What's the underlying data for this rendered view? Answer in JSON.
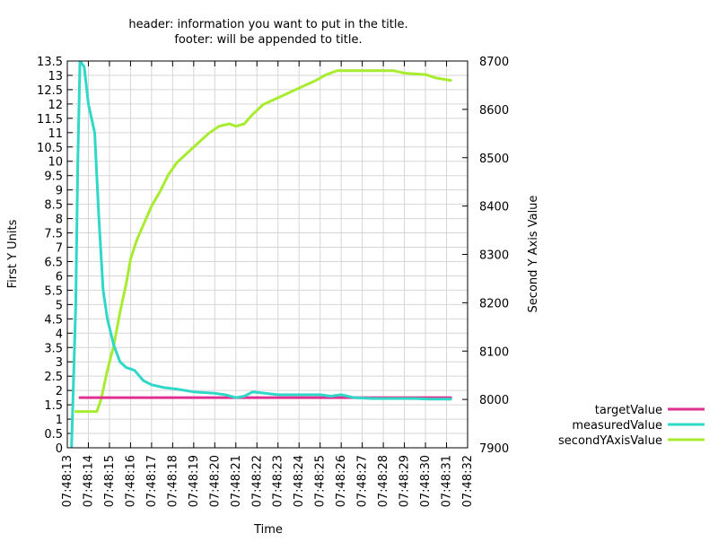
{
  "chart_data": {
    "type": "line",
    "title": "header: information you want to put in the title.",
    "subtitle": "footer: will be appended to title.",
    "xlabel": "Time",
    "ylabel": "First Y Units",
    "y2label": "Second Y Axis Value",
    "grid": true,
    "legend_position": "bottom-right, outside plot",
    "x_ticks": [
      "07:48:13",
      "07:48:14",
      "07:48:15",
      "07:48:16",
      "07:48:17",
      "07:48:18",
      "07:48:19",
      "07:48:20",
      "07:48:21",
      "07:48:22",
      "07:48:23",
      "07:48:24",
      "07:48:25",
      "07:48:26",
      "07:48:27",
      "07:48:28",
      "07:48:29",
      "07:48:30",
      "07:48:31",
      "07:48:32"
    ],
    "xlim": [
      "07:48:13",
      "07:48:32"
    ],
    "ylim": [
      0,
      13.5
    ],
    "y_ticks": [
      "0",
      "0.5",
      "1",
      "1.5",
      "2",
      "2.5",
      "3",
      "3.5",
      "4",
      "4.5",
      "5",
      "5.5",
      "6",
      "6.5",
      "7",
      "7.5",
      "8",
      "8.5",
      "9",
      "9.5",
      "10",
      "10.5",
      "11",
      "11.5",
      "12",
      "12.5",
      "13",
      "13.5"
    ],
    "y2lim": [
      7900,
      8700
    ],
    "y2_ticks": [
      "7900",
      "8000",
      "8100",
      "8200",
      "8300",
      "8400",
      "8500",
      "8600",
      "8700"
    ],
    "series": [
      {
        "name": "targetValue",
        "axis": "y1",
        "color": "#e0308f",
        "x": [
          "07:48:13.6",
          "07:48:31.2"
        ],
        "y": [
          1.75,
          1.75
        ]
      },
      {
        "name": "measuredValue",
        "axis": "y1",
        "color": "#30d8c8",
        "x": [
          "07:48:13.2",
          "07:48:13.4",
          "07:48:13.5",
          "07:48:13.6",
          "07:48:13.8",
          "07:48:14.0",
          "07:48:14.3",
          "07:48:14.5",
          "07:48:14.7",
          "07:48:14.9",
          "07:48:15.2",
          "07:48:15.5",
          "07:48:15.8",
          "07:48:16.2",
          "07:48:16.6",
          "07:48:17.0",
          "07:48:17.6",
          "07:48:18.2",
          "07:48:19.0",
          "07:48:20.0",
          "07:48:20.5",
          "07:48:21.0",
          "07:48:21.4",
          "07:48:21.8",
          "07:48:22.2",
          "07:48:23.0",
          "07:48:24.0",
          "07:48:25.0",
          "07:48:25.5",
          "07:48:26.0",
          "07:48:26.6",
          "07:48:27.5",
          "07:48:28.5",
          "07:48:29.5",
          "07:48:30.2",
          "07:48:31.2"
        ],
        "y": [
          0.0,
          5.0,
          10.0,
          13.5,
          13.3,
          12.0,
          11.0,
          8.0,
          5.5,
          4.5,
          3.6,
          3.0,
          2.8,
          2.7,
          2.35,
          2.2,
          2.1,
          2.05,
          1.95,
          1.9,
          1.85,
          1.75,
          1.8,
          1.95,
          1.92,
          1.85,
          1.85,
          1.85,
          1.8,
          1.85,
          1.75,
          1.72,
          1.72,
          1.72,
          1.7,
          1.7
        ]
      },
      {
        "name": "secondYAxisValue",
        "axis": "y2",
        "color": "#a8ec30",
        "x": [
          "07:48:13.4",
          "07:48:13.8",
          "07:48:14.4",
          "07:48:14.6",
          "07:48:14.9",
          "07:48:15.2",
          "07:48:15.5",
          "07:48:15.8",
          "07:48:16.0",
          "07:48:16.3",
          "07:48:16.6",
          "07:48:17.0",
          "07:48:17.4",
          "07:48:17.8",
          "07:48:18.2",
          "07:48:18.7",
          "07:48:19.2",
          "07:48:19.7",
          "07:48:20.2",
          "07:48:20.7",
          "07:48:21.0",
          "07:48:21.4",
          "07:48:21.8",
          "07:48:22.3",
          "07:48:22.8",
          "07:48:23.3",
          "07:48:23.8",
          "07:48:24.3",
          "07:48:24.8",
          "07:48:25.3",
          "07:48:25.8",
          "07:48:26.5",
          "07:48:27.5",
          "07:48:28.5",
          "07:48:29.0",
          "07:48:30.0",
          "07:48:30.5",
          "07:48:31.2"
        ],
        "y": [
          7975,
          7975,
          7975,
          8000,
          8060,
          8110,
          8180,
          8240,
          8290,
          8330,
          8360,
          8400,
          8430,
          8465,
          8490,
          8510,
          8530,
          8550,
          8565,
          8570,
          8565,
          8570,
          8590,
          8610,
          8620,
          8630,
          8640,
          8650,
          8660,
          8672,
          8680,
          8680,
          8680,
          8680,
          8675,
          8672,
          8665,
          8660
        ]
      }
    ]
  }
}
